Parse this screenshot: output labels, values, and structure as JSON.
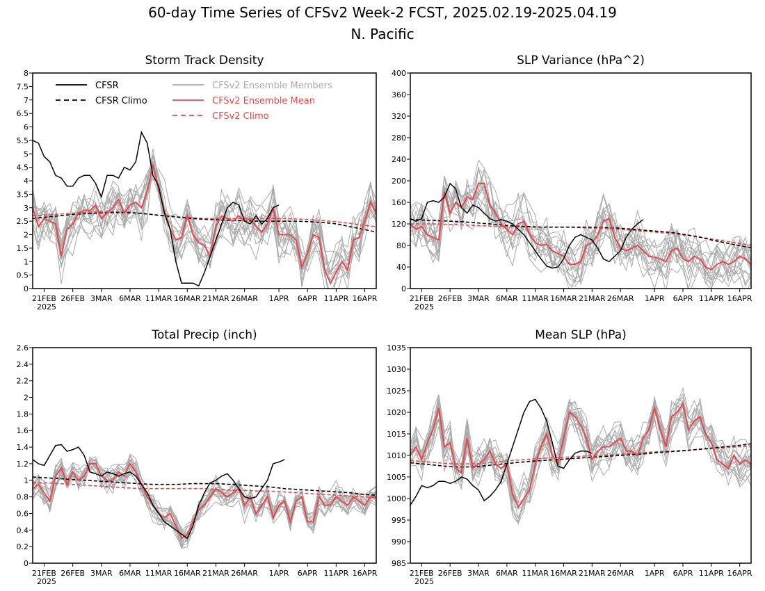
{
  "title_line1": "60-day Time Series of CFSv2 Week-2 FCST, 2025.02.19-2025.04.19",
  "title_line2": "N. Pacific",
  "colors": {
    "cfsr": "#000000",
    "members": "#aaaaaa",
    "ens_mean": "#e8474d",
    "cfsv2_climo": "#e8474d"
  },
  "legend": [
    {
      "label": "CFSR",
      "color": "#000000",
      "dashed": false
    },
    {
      "label": "CFSR Climo",
      "color": "#000000",
      "dashed": true
    },
    {
      "label": "CFSv2 Ensemble Members",
      "color": "#aaaaaa",
      "dashed": false
    },
    {
      "label": "CFSv2 Ensemble Mean",
      "color": "#e8474d",
      "dashed": false
    },
    {
      "label": "CFSv2 Climo",
      "color": "#e8474d",
      "dashed": true
    }
  ],
  "x_axis": {
    "days": 60,
    "tick_labels": [
      "21FEB",
      "26FEB",
      "3MAR",
      "6MAR",
      "11MAR",
      "16MAR",
      "21MAR",
      "26MAR",
      "1APR",
      "6APR",
      "11APR",
      "16APR"
    ],
    "tick_days": [
      2,
      7,
      12,
      17,
      22,
      27,
      32,
      37,
      43,
      48,
      53,
      58
    ],
    "year_label": "2025"
  },
  "chart_data": [
    {
      "type": "line",
      "title": "Storm Track Density",
      "ylim": [
        0,
        8
      ],
      "yticks": [
        "0",
        "0.5",
        "1",
        "1.5",
        "2",
        "2.5",
        "3",
        "3.5",
        "4",
        "4.5",
        "5",
        "5.5",
        "6",
        "6.5",
        "7",
        "7.5",
        "8"
      ],
      "yvals": [
        0,
        0.5,
        1,
        1.5,
        2,
        2.5,
        3,
        3.5,
        4,
        4.5,
        5,
        5.5,
        6,
        6.5,
        7,
        7.5,
        8
      ],
      "cfsr": [
        5.5,
        5.4,
        4.9,
        4.7,
        4.2,
        4.1,
        3.8,
        3.8,
        4.1,
        4.2,
        4.2,
        3.9,
        3.4,
        4.2,
        4.2,
        4.1,
        4.5,
        4.4,
        4.7,
        5.8,
        5.4,
        4.2,
        3.8,
        2.8,
        2.2,
        1.0,
        0.2,
        0.2,
        0.2,
        0.1,
        0.6,
        1.2,
        1.8,
        2.4,
        3.0,
        3.2,
        3.1,
        2.5,
        2.4,
        2.7,
        2.4,
        2.6,
        3.0,
        3.1
      ],
      "ens_mean": [
        3.0,
        2.3,
        2.6,
        2.5,
        2.4,
        1.2,
        2.2,
        2.4,
        2.8,
        2.9,
        2.9,
        3.1,
        2.6,
        2.8,
        3.0,
        3.3,
        2.8,
        3.1,
        3.2,
        3.0,
        3.6,
        4.6,
        3.7,
        2.9,
        2.2,
        1.8,
        1.9,
        2.7,
        2.0,
        1.7,
        1.6,
        1.2,
        2.3,
        2.7,
        2.6,
        2.5,
        2.7,
        2.5,
        2.6,
        2.3,
        2.1,
        2.4,
        3.0,
        2.0,
        2.0,
        2.0,
        1.8,
        0.8,
        1.3,
        2.0,
        1.9,
        0.7,
        0.2,
        0.6,
        1.0,
        0.7,
        1.8,
        1.9,
        2.5,
        3.2,
        2.8
      ],
      "cfsr_climo": [
        2.6,
        2.65,
        2.7,
        2.75,
        2.78,
        2.8,
        2.82,
        2.82,
        2.8,
        2.75,
        2.7,
        2.65,
        2.6,
        2.57,
        2.55,
        2.53,
        2.52,
        2.5,
        2.5,
        2.5,
        2.5,
        2.48,
        2.45,
        2.4,
        2.3,
        2.2,
        2.1
      ],
      "cfsv2_climo": [
        2.7,
        2.73,
        2.76,
        2.8,
        2.83,
        2.85,
        2.86,
        2.85,
        2.8,
        2.75,
        2.7,
        2.66,
        2.63,
        2.6,
        2.6,
        2.6,
        2.6,
        2.6,
        2.6,
        2.6,
        2.58,
        2.56,
        2.52,
        2.48,
        2.42,
        2.35,
        2.3
      ],
      "spread": 0.85,
      "has_legend": true
    },
    {
      "type": "line",
      "title": "SLP Variance (hPa^2)",
      "ylim": [
        0,
        400
      ],
      "yticks": [
        "0",
        "40",
        "80",
        "120",
        "160",
        "200",
        "240",
        "280",
        "320",
        "360",
        "400"
      ],
      "yvals": [
        0,
        40,
        80,
        120,
        160,
        200,
        240,
        280,
        320,
        360,
        400
      ],
      "cfsr": [
        130,
        125,
        130,
        160,
        163,
        160,
        170,
        195,
        185,
        150,
        140,
        155,
        150,
        140,
        130,
        125,
        128,
        125,
        120,
        110,
        100,
        85,
        70,
        55,
        42,
        38,
        40,
        55,
        80,
        95,
        100,
        95,
        90,
        75,
        55,
        50,
        60,
        70,
        95,
        110,
        120,
        128
      ],
      "ens_mean": [
        120,
        110,
        115,
        100,
        95,
        90,
        180,
        140,
        160,
        150,
        170,
        165,
        195,
        195,
        155,
        140,
        120,
        110,
        100,
        120,
        125,
        100,
        85,
        80,
        82,
        70,
        65,
        60,
        45,
        45,
        50,
        80,
        85,
        100,
        125,
        130,
        95,
        75,
        70,
        75,
        80,
        70,
        60,
        58,
        55,
        50,
        70,
        75,
        55,
        50,
        60,
        55,
        40,
        35,
        45,
        50,
        45,
        50,
        60,
        55,
        45
      ],
      "cfsr_climo": [
        128,
        127,
        126,
        125,
        124,
        122,
        120,
        118,
        116,
        115,
        114,
        114,
        114,
        114,
        114,
        113,
        112,
        110,
        108,
        106,
        104,
        100,
        96,
        90,
        85,
        80,
        76
      ],
      "cfsv2_climo": [
        120,
        120,
        120,
        119,
        118,
        117,
        116,
        115,
        115,
        115,
        114,
        114,
        114,
        113,
        112,
        111,
        110,
        108,
        106,
        104,
        102,
        99,
        96,
        92,
        88,
        84,
        80
      ],
      "spread": 45,
      "has_legend": false
    },
    {
      "type": "line",
      "title": "Total Precip (inch)",
      "ylim": [
        0,
        2.6
      ],
      "yticks": [
        "0",
        "0.2",
        "0.4",
        "0.6",
        "0.8",
        "1",
        "1.2",
        "1.4",
        "1.6",
        "1.8",
        "2",
        "2.2",
        "2.4",
        "2.6"
      ],
      "yvals": [
        0,
        0.2,
        0.4,
        0.6,
        0.8,
        1,
        1.2,
        1.4,
        1.6,
        1.8,
        2,
        2.2,
        2.4,
        2.6
      ],
      "cfsr": [
        1.25,
        1.2,
        1.18,
        1.3,
        1.42,
        1.43,
        1.35,
        1.37,
        1.4,
        1.3,
        1.1,
        1.08,
        1.05,
        1.1,
        1.08,
        1.05,
        1.08,
        1.1,
        1.05,
        0.95,
        0.85,
        0.7,
        0.6,
        0.5,
        0.45,
        0.4,
        0.35,
        0.3,
        0.45,
        0.7,
        0.85,
        0.97,
        1.0,
        1.05,
        1.08,
        1.0,
        0.9,
        0.8,
        0.78,
        0.8,
        0.9,
        1.0,
        1.2,
        1.22,
        1.25
      ],
      "ens_mean": [
        0.9,
        0.95,
        0.85,
        0.75,
        1.05,
        1.15,
        0.95,
        1.1,
        1.0,
        1.05,
        1.2,
        1.2,
        1.05,
        1.0,
        1.0,
        1.1,
        1.05,
        1.2,
        1.1,
        0.95,
        0.8,
        0.7,
        0.6,
        0.55,
        0.6,
        0.45,
        0.3,
        0.35,
        0.5,
        0.65,
        0.7,
        0.8,
        0.9,
        0.85,
        0.8,
        0.85,
        0.9,
        0.7,
        0.8,
        0.6,
        0.7,
        0.8,
        0.55,
        0.7,
        0.75,
        0.5,
        0.75,
        0.8,
        0.5,
        0.5,
        0.8,
        0.7,
        0.7,
        0.8,
        0.75,
        0.7,
        0.8,
        0.75,
        0.7,
        0.8,
        0.8
      ],
      "cfsr_climo": [
        1.04,
        1.03,
        1.02,
        1.01,
        1.0,
        0.99,
        0.98,
        0.97,
        0.96,
        0.95,
        0.95,
        0.95,
        0.96,
        0.96,
        0.96,
        0.95,
        0.94,
        0.93,
        0.92,
        0.9,
        0.89,
        0.88,
        0.87,
        0.86,
        0.85,
        0.83,
        0.82
      ],
      "cfsv2_climo": [
        0.97,
        0.97,
        0.96,
        0.95,
        0.94,
        0.93,
        0.92,
        0.91,
        0.9,
        0.9,
        0.9,
        0.9,
        0.9,
        0.9,
        0.89,
        0.88,
        0.88,
        0.87,
        0.87,
        0.86,
        0.85,
        0.84,
        0.83,
        0.82,
        0.81,
        0.8,
        0.79
      ],
      "spread": 0.14,
      "has_legend": false
    },
    {
      "type": "line",
      "title": "Mean SLP (hPa)",
      "ylim": [
        985,
        1035
      ],
      "yticks": [
        "985",
        "990",
        "995",
        "1000",
        "1005",
        "1010",
        "1015",
        "1020",
        "1025",
        "1030",
        "1035"
      ],
      "yvals": [
        985,
        990,
        995,
        1000,
        1005,
        1010,
        1015,
        1020,
        1025,
        1030,
        1035
      ],
      "cfsr": [
        998.5,
        1000.5,
        1003,
        1002.5,
        1003,
        1004,
        1004,
        1003.5,
        1004,
        1005,
        1004.5,
        1003,
        1002,
        999.5,
        1000.5,
        1002,
        1004,
        1008,
        1012,
        1016,
        1020,
        1022.5,
        1023,
        1021,
        1018,
        1013,
        1007.5,
        1007,
        1009,
        1010.5,
        1011,
        1011,
        1010.5
      ],
      "ens_mean": [
        1010,
        1012,
        1009,
        1013,
        1016,
        1021,
        1012,
        1013,
        1007,
        1006,
        1014,
        1007,
        1008,
        1009,
        1011,
        1008,
        1007,
        1008,
        1001,
        998,
        1000,
        1002,
        1008,
        1012,
        1015,
        1010,
        1008,
        1014,
        1020,
        1019,
        1017,
        1014,
        1009,
        1011,
        1012,
        1012,
        1013,
        1014,
        1011,
        1011,
        1010,
        1014,
        1016,
        1021,
        1016,
        1012,
        1019,
        1020,
        1022,
        1016,
        1018,
        1019,
        1015,
        1013,
        1009,
        1008,
        1007,
        1010,
        1008,
        1009,
        1008
      ],
      "cfsr_climo": [
        1008.3,
        1008,
        1007.7,
        1007.4,
        1007.3,
        1007.4,
        1007.7,
        1008,
        1008.3,
        1008.6,
        1008.8,
        1009,
        1009.2,
        1009.4,
        1009.6,
        1009.8,
        1010,
        1010.2,
        1010.4,
        1010.7,
        1010.9,
        1011.1,
        1011.4,
        1011.7,
        1012,
        1012.3,
        1012.7
      ],
      "cfsv2_climo": [
        1008.8,
        1008.6,
        1008.3,
        1008.1,
        1008,
        1008.1,
        1008.3,
        1008.6,
        1008.9,
        1009.1,
        1009.3,
        1009.5,
        1009.6,
        1009.8,
        1010,
        1010.1,
        1010.3,
        1010.5,
        1010.7,
        1010.9,
        1011,
        1011.2,
        1011.4,
        1011.6,
        1011.8,
        1012,
        1012.2
      ],
      "spread": 4.5,
      "has_legend": false
    }
  ]
}
